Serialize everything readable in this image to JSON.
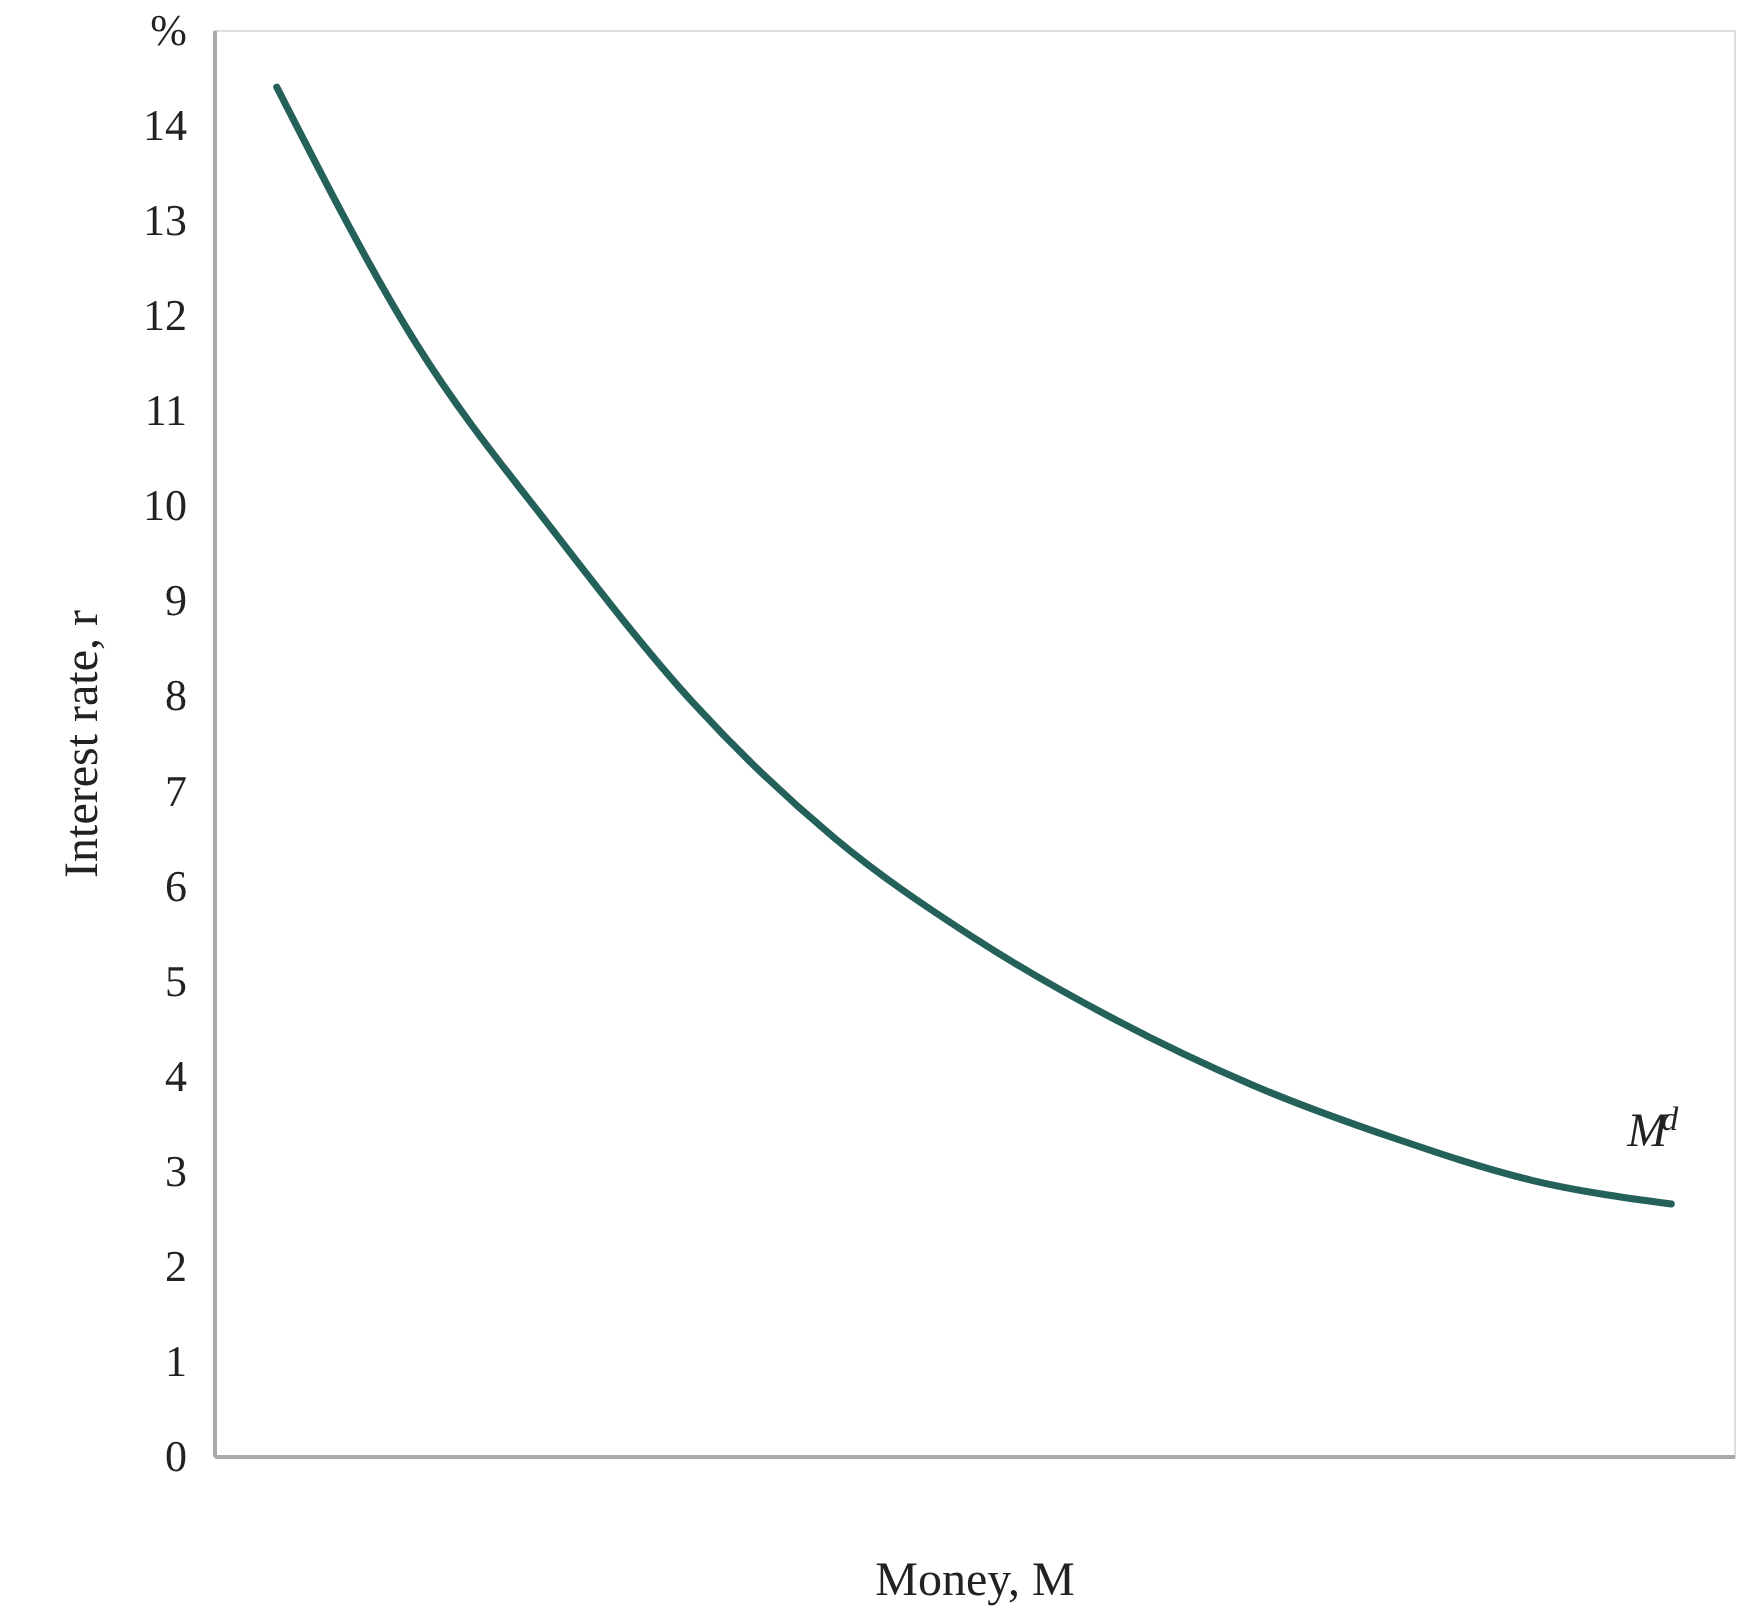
{
  "chart_data": {
    "type": "line",
    "ylabel": "Interest rate, r",
    "xlabel": "Money, M",
    "categories": [
      null,
      null,
      null,
      null,
      null,
      null,
      null,
      null,
      null,
      null,
      null
    ],
    "series": [
      {
        "color": "#24615a",
        "values": [
          14.4,
          11.7,
          9.7,
          7.9,
          6.5,
          5.45,
          4.6,
          3.9,
          3.35,
          2.9,
          2.65
        ]
      }
    ],
    "ylim": [
      0,
      15
    ],
    "yticks": [
      0,
      1,
      2,
      3,
      4,
      5,
      6,
      7,
      8,
      9,
      10,
      11,
      12,
      13,
      14,
      {
        "value": 15,
        "label": "%"
      }
    ],
    "annotations": [
      "M$^{d}$"
    ],
    "tick_labels": "y",
    "grid": false,
    "marker": "none",
    "line_style": "solid"
  }
}
